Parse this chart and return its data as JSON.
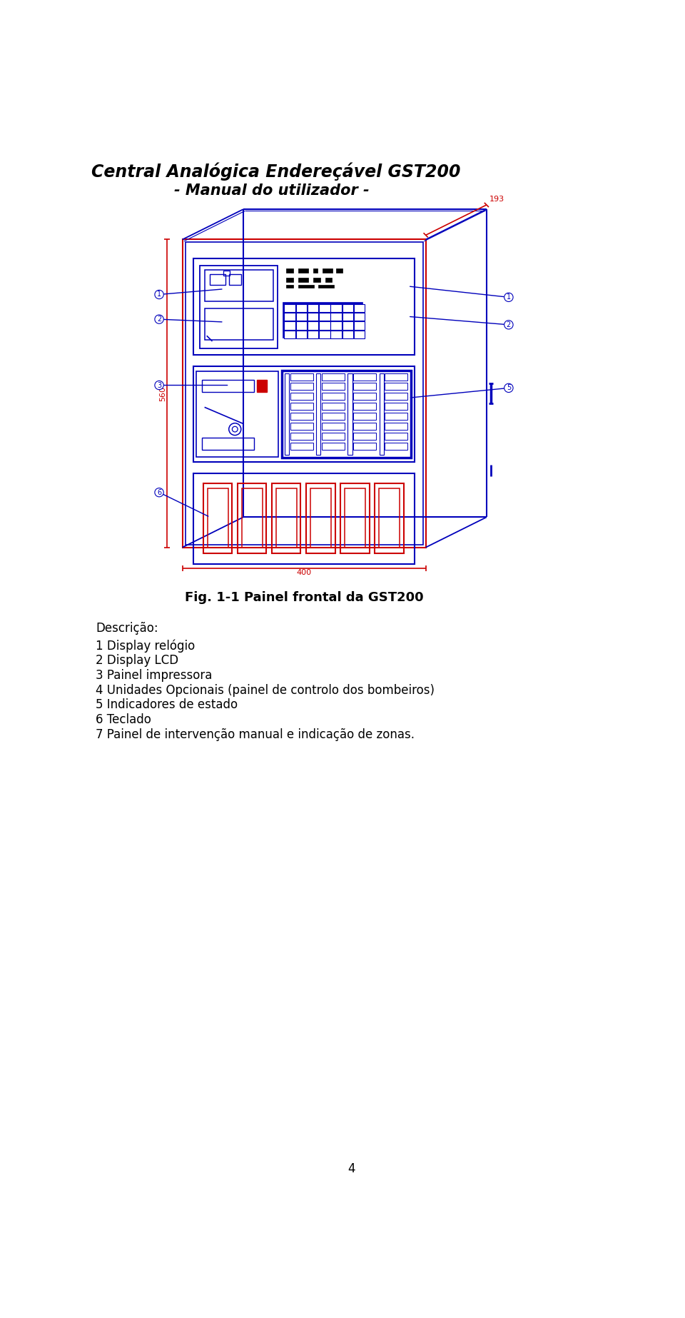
{
  "title_line1": "Central Analógica Endereçável GST200",
  "title_line2": "- Manual do utilizador -",
  "fig_caption": "Fig. 1-1 Painel frontal da GST200",
  "description_title": "Descrição:",
  "description_items": [
    "1 Display relógio",
    "2 Display LCD",
    "3 Painel impressora",
    "4 Unidades Opcionais (painel de controlo dos bombeiros)",
    "5 Indicadores de estado",
    "6 Teclado",
    "7 Painel de intervenção manual e indicação de zonas."
  ],
  "page_number": "4",
  "blue": "#0000BB",
  "red": "#CC0000",
  "black": "#000000",
  "darkblue": "#000066",
  "bg": "#FFFFFF"
}
